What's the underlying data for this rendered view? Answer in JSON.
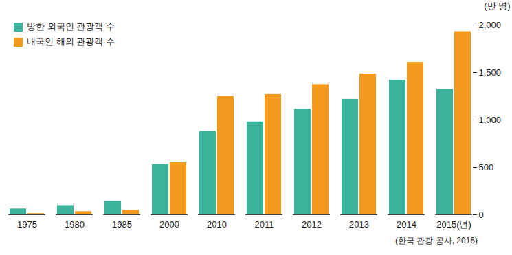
{
  "chart_data": {
    "type": "bar",
    "categories": [
      "1975",
      "1980",
      "1985",
      "2000",
      "2010",
      "2011",
      "2012",
      "2013",
      "2014",
      "2015(년)"
    ],
    "series": [
      {
        "name": "방한 외국인 관광객 수",
        "color": "#3bb39c",
        "values": [
          63,
          98,
          143,
          532,
          880,
          980,
          1114,
          1218,
          1420,
          1323
        ]
      },
      {
        "name": "내국인 해외 관광객 수",
        "color": "#f39a1e",
        "values": [
          13,
          34,
          48,
          551,
          1249,
          1269,
          1374,
          1485,
          1608,
          1931
        ]
      }
    ],
    "y_label": "(만 명)",
    "ylim": [
      0,
      2000
    ],
    "yticks": [
      0,
      500,
      {
        "value": 1000,
        "label": "1,000"
      },
      {
        "value": 1500,
        "label": "1,500"
      },
      {
        "value": 2000,
        "label": "2,000"
      }
    ],
    "grid": false,
    "legend": "top-left",
    "caption": "(한국 관광 공사, 2016)"
  }
}
